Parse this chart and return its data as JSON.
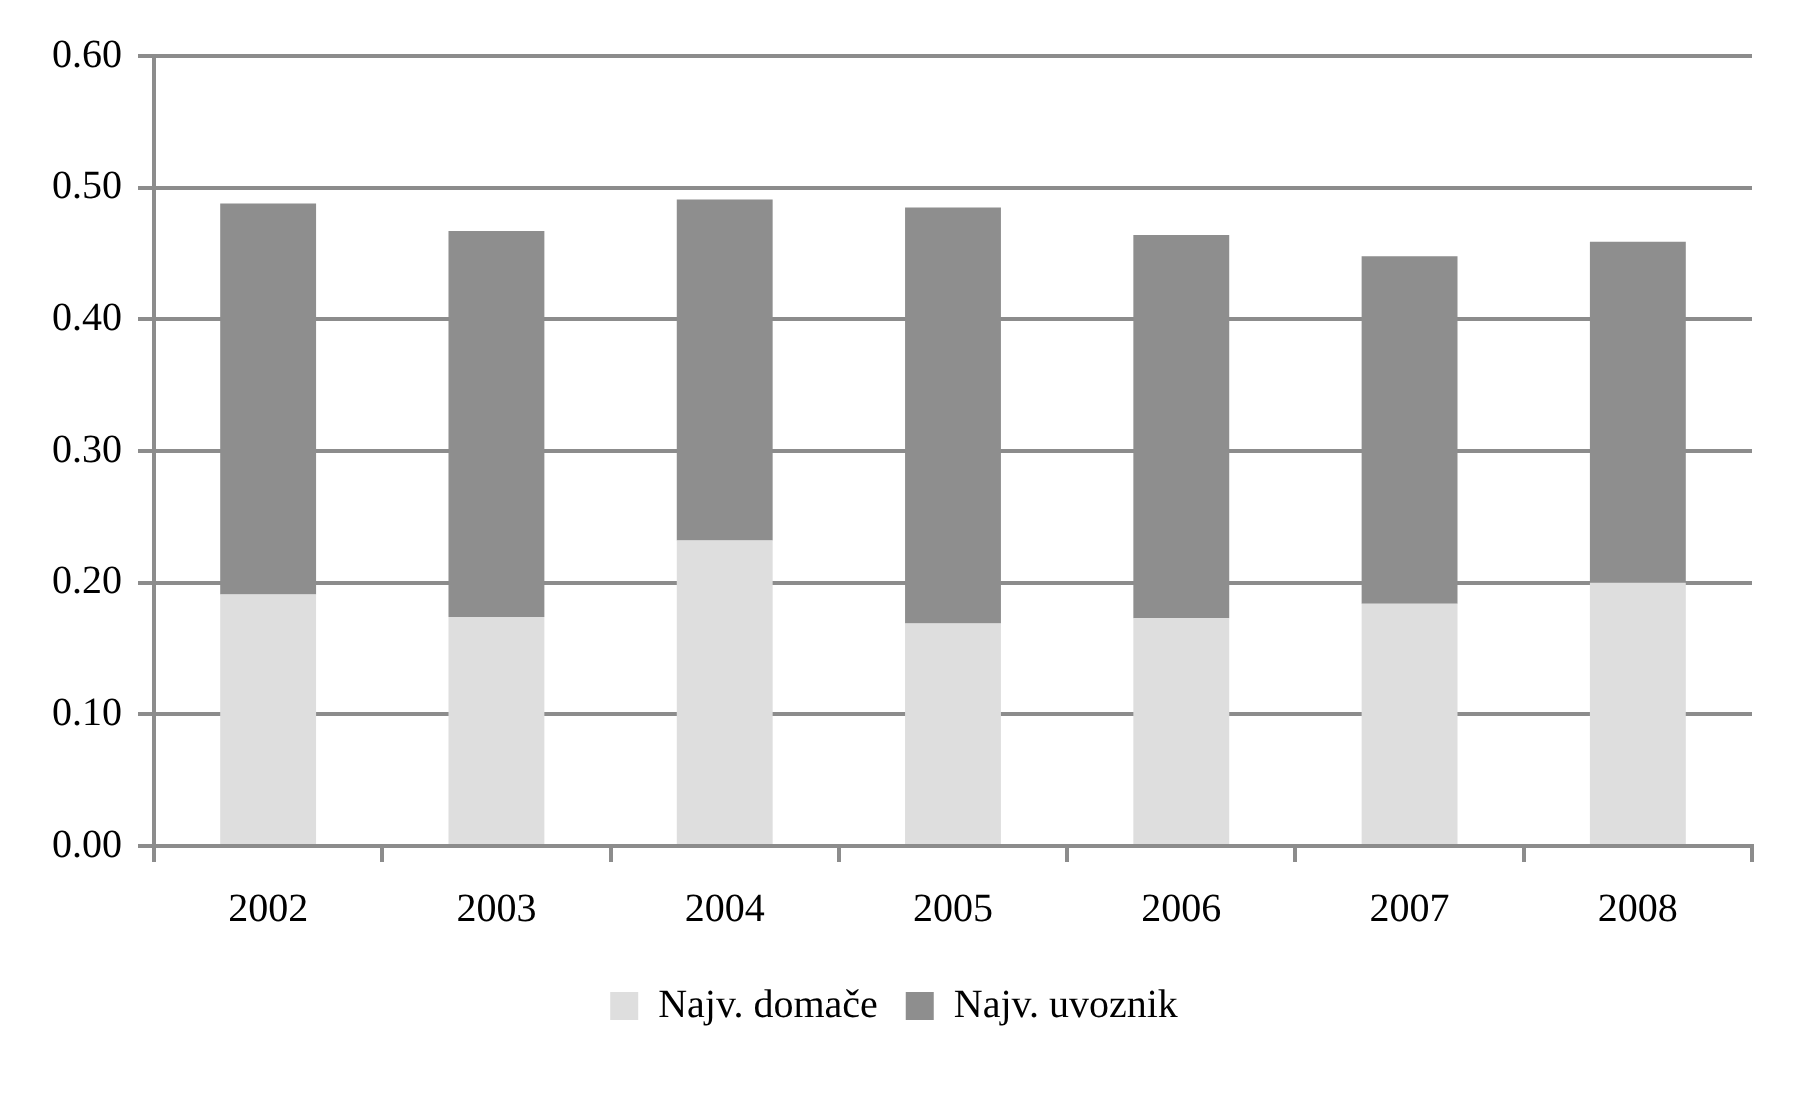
{
  "chart_data": {
    "type": "bar",
    "stacked": true,
    "categories": [
      "2002",
      "2003",
      "2004",
      "2005",
      "2006",
      "2007",
      "2008"
    ],
    "series": [
      {
        "name": "Najv. domače",
        "color": "#dedede",
        "values": [
          0.191,
          0.174,
          0.232,
          0.169,
          0.173,
          0.184,
          0.2
        ]
      },
      {
        "name": "Najv. uvoznik",
        "color": "#8e8e8e",
        "values": [
          0.297,
          0.293,
          0.259,
          0.316,
          0.291,
          0.264,
          0.259
        ]
      }
    ],
    "ylim": [
      0,
      0.6
    ],
    "yticks": [
      {
        "value": 0,
        "label": "0.00"
      },
      {
        "value": 0.1,
        "label": "0.10"
      },
      {
        "value": 0.2,
        "label": "0.20"
      },
      {
        "value": 0.3,
        "label": "0.30"
      },
      {
        "value": 0.4,
        "label": "0.40"
      },
      {
        "value": 0.5,
        "label": "0.50"
      },
      {
        "value": 0.6,
        "label": "0.60"
      }
    ],
    "grid": "y",
    "legend": "bottom"
  }
}
